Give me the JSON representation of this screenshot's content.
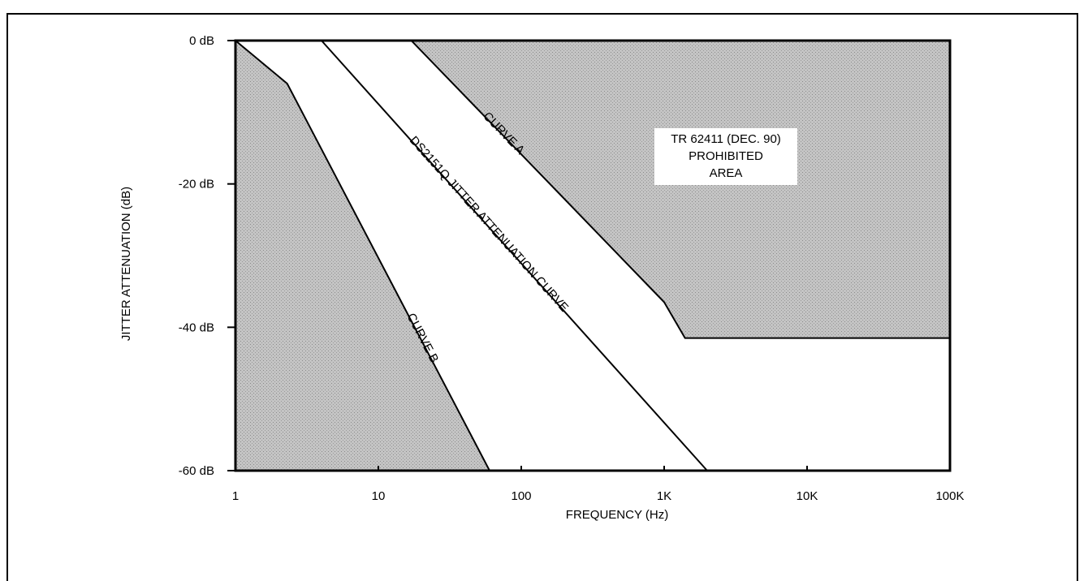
{
  "chart_data": {
    "type": "line",
    "title": "",
    "xlabel": "FREQUENCY (Hz)",
    "ylabel": "JITTER ATTENUATION (dB)",
    "x_scale": "log",
    "xlim": [
      1,
      100000
    ],
    "ylim": [
      -60,
      0
    ],
    "x_ticks": [
      1,
      10,
      100,
      1000,
      10000,
      100000
    ],
    "x_tick_labels": [
      "1",
      "10",
      "100",
      "1K",
      "10K",
      "100K"
    ],
    "y_ticks": [
      0,
      -20,
      -40,
      -60
    ],
    "y_tick_labels": [
      "0 dB",
      "-20 dB",
      "-40 dB",
      "-60 dB"
    ],
    "grid": false,
    "series": [
      {
        "name": "CURVE A",
        "x": [
          1,
          2.3,
          17,
          1000,
          1400,
          100000
        ],
        "y": [
          0,
          0,
          0,
          -36.5,
          -41.5,
          -41.5
        ]
      },
      {
        "name": "CURVE B",
        "x": [
          1,
          2.3,
          60
        ],
        "y": [
          0,
          -6,
          -60
        ]
      },
      {
        "name": "DS2151Q JITTER ATTENUATION CURVE",
        "x": [
          4,
          2000
        ],
        "y": [
          0,
          -60
        ]
      }
    ],
    "annotations": [
      {
        "lines": [
          "TR 62411 (DEC. 90)",
          "PROHIBITED",
          "AREA"
        ]
      }
    ],
    "colors": {
      "prohibited_fill": "#bdbdbd",
      "allowed_fill": "#ffffff",
      "line": "#000000"
    }
  }
}
